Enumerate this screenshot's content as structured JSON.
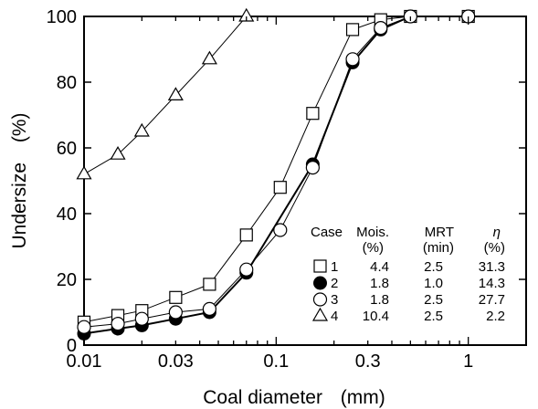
{
  "chart_data": {
    "type": "scatter",
    "xlabel": "Coal diameter",
    "xunit": "(mm)",
    "ylabel": "Undersize",
    "yunit": "(%)",
    "xscale": "log",
    "xlim": [
      0.01,
      2
    ],
    "ylim": [
      0,
      100
    ],
    "xticks": [
      0.01,
      0.03,
      0.1,
      0.3,
      1
    ],
    "xtick_labels": [
      "0.01",
      "0.03",
      "0.1",
      "0.3",
      "1"
    ],
    "yticks": [
      0,
      20,
      40,
      60,
      80,
      100
    ],
    "ytick_labels": [
      "0",
      "20",
      "40",
      "60",
      "80",
      "100"
    ],
    "grid": false,
    "legend_position": "lower-right",
    "legend_table": {
      "headers": [
        "Case",
        "Mois.",
        "MRT",
        "η"
      ],
      "units": [
        "",
        "(%)",
        "(min)",
        "(%)"
      ],
      "rows": [
        {
          "case": "1",
          "mois": "4.4",
          "mrt": "2.5",
          "eta": "31.3"
        },
        {
          "case": "2",
          "mois": "1.8",
          "mrt": "1.0",
          "eta": "14.3"
        },
        {
          "case": "3",
          "mois": "1.8",
          "mrt": "2.5",
          "eta": "27.7"
        },
        {
          "case": "4",
          "mois": "10.4",
          "mrt": "2.5",
          "eta": "2.2"
        }
      ]
    },
    "series": [
      {
        "marker": "open-square",
        "line_width": 1,
        "x": [
          0.01,
          0.015,
          0.02,
          0.03,
          0.045,
          0.07,
          0.105,
          0.155,
          0.25,
          0.35,
          0.5,
          1.0
        ],
        "y": [
          7,
          9,
          10.5,
          14.5,
          18.5,
          33.5,
          48,
          70.5,
          96,
          99,
          100,
          100
        ]
      },
      {
        "marker": "filled-circle",
        "line_width": 2,
        "x": [
          0.01,
          0.015,
          0.02,
          0.03,
          0.045,
          0.07,
          0.155,
          0.25,
          0.35,
          0.5,
          1.0
        ],
        "y": [
          3.5,
          5,
          6,
          8,
          10,
          22,
          55,
          86,
          96,
          100,
          100
        ]
      },
      {
        "marker": "open-circle",
        "line_width": 1,
        "x": [
          0.01,
          0.015,
          0.02,
          0.03,
          0.045,
          0.07,
          0.105,
          0.155,
          0.25,
          0.35,
          0.5,
          1.0
        ],
        "y": [
          5.5,
          6.5,
          8,
          10,
          11,
          23,
          35,
          54,
          87,
          96.5,
          100,
          100
        ]
      },
      {
        "marker": "open-triangle",
        "line_width": 1,
        "x": [
          0.01,
          0.015,
          0.02,
          0.03,
          0.045,
          0.07
        ],
        "y": [
          52,
          58,
          65,
          76,
          87,
          100
        ]
      }
    ]
  }
}
